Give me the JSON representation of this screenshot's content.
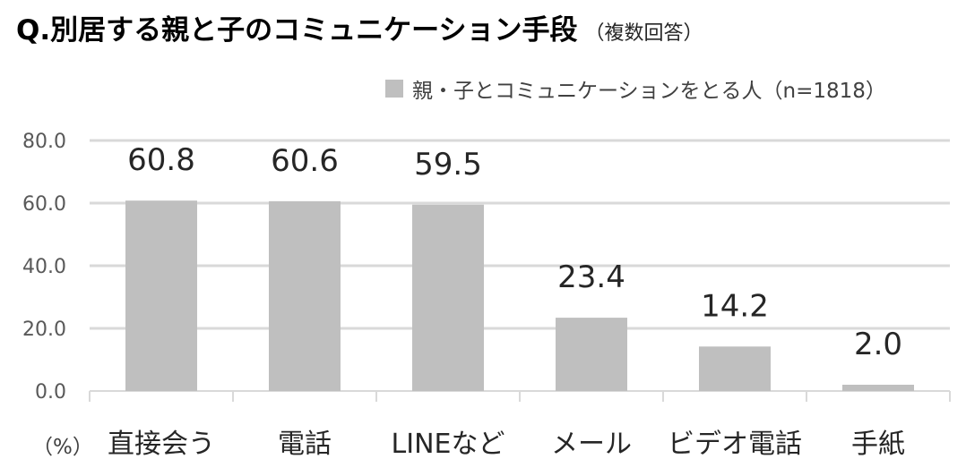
{
  "title": "Q.別居する親と子のコミュニケーション手段",
  "subtitle": "（複数回答）",
  "unit_label": "（%）",
  "colors": {
    "bar": "#bfbfbf",
    "grid": "#d9d9d9",
    "text": "#262626",
    "axis_text": "#595959"
  },
  "chart_data": {
    "type": "bar",
    "categories": [
      "直接会う",
      "電話",
      "LINEなど",
      "メール",
      "ビデオ電話",
      "手紙"
    ],
    "series": [
      {
        "name": "親・子とコミュニケーションをとる人（n=1818）",
        "values": [
          60.8,
          60.6,
          59.5,
          23.4,
          14.2,
          2.0
        ]
      }
    ],
    "value_labels": [
      "60.8",
      "60.6",
      "59.5",
      "23.4",
      "14.2",
      "2.0"
    ],
    "ylim": [
      0,
      80
    ],
    "yticks": [
      0,
      20,
      40,
      60,
      80
    ],
    "ytick_labels": [
      "0.0",
      "20.0",
      "40.0",
      "60.0",
      "80.0"
    ],
    "grid": true,
    "legend_position": "top-right",
    "xlabel": "",
    "ylabel": ""
  }
}
